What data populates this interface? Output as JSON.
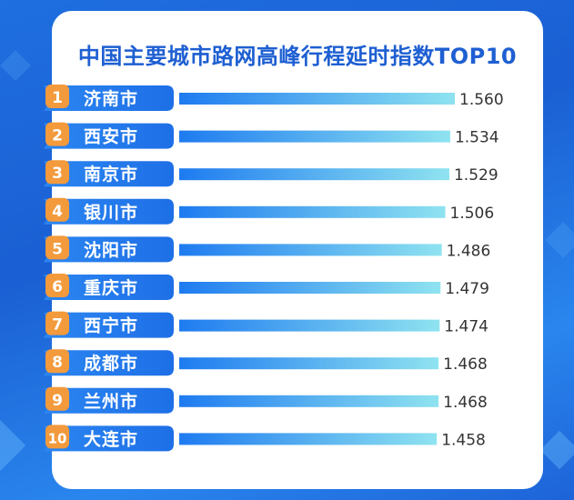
{
  "title": "中国主要城市路网高峰行程延时指数TOP10",
  "colors": {
    "accent": "#1e5fd2",
    "badge": "#f39a3c",
    "bar_start": "#1e7bf0",
    "bar_end": "#8fe3f0"
  },
  "chart_data": {
    "type": "bar",
    "orientation": "horizontal",
    "title": "中国主要城市路网高峰行程延时指数TOP10",
    "ranks": [
      "1",
      "2",
      "3",
      "4",
      "5",
      "6",
      "7",
      "8",
      "9",
      "10"
    ],
    "categories": [
      "济南市",
      "西安市",
      "南京市",
      "银川市",
      "沈阳市",
      "重庆市",
      "西宁市",
      "成都市",
      "兰州市",
      "大连市"
    ],
    "values": [
      1.56,
      1.534,
      1.529,
      1.506,
      1.486,
      1.479,
      1.474,
      1.468,
      1.468,
      1.458
    ],
    "value_labels": [
      "1.560",
      "1.534",
      "1.529",
      "1.506",
      "1.486",
      "1.479",
      "1.474",
      "1.468",
      "1.468",
      "1.458"
    ],
    "xlim": [
      0,
      1.56
    ],
    "grid": false,
    "legend": "none"
  }
}
